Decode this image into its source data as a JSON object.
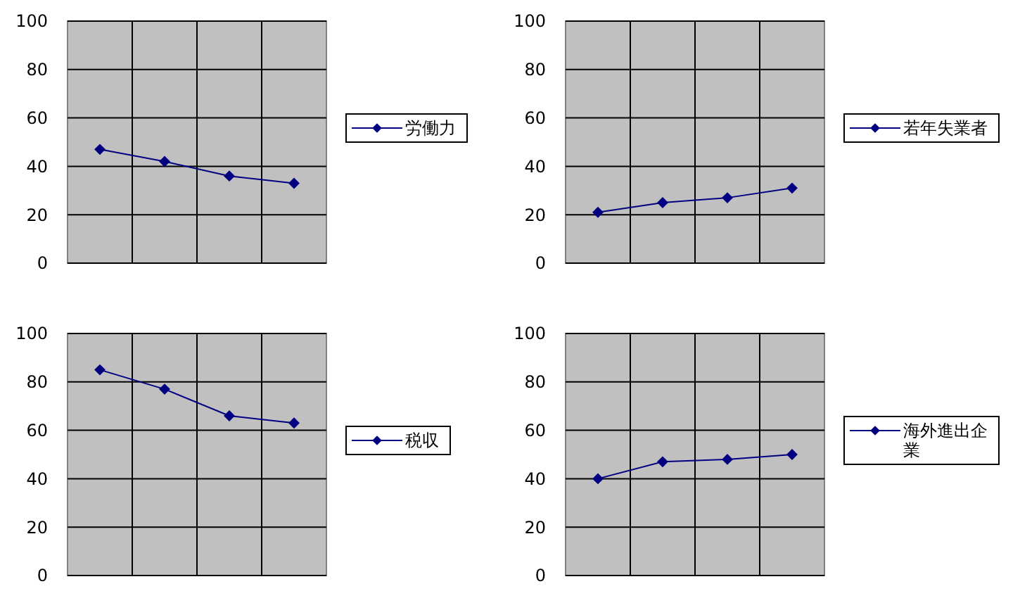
{
  "chart_data": [
    {
      "type": "line",
      "categories": [
        null,
        null,
        null,
        null
      ],
      "series": [
        {
          "name": "労働力",
          "color": "#000080",
          "values": [
            47,
            42,
            36,
            33
          ]
        }
      ],
      "ylim": [
        0,
        100
      ],
      "yticks": [
        0,
        20,
        40,
        60,
        80,
        100
      ],
      "grid": true,
      "legend": "right",
      "marker": "diamond"
    },
    {
      "type": "line",
      "categories": [
        null,
        null,
        null,
        null
      ],
      "series": [
        {
          "name": "若年失業者",
          "color": "#000080",
          "values": [
            21,
            25,
            27,
            31
          ]
        }
      ],
      "ylim": [
        0,
        100
      ],
      "yticks": [
        0,
        20,
        40,
        60,
        80,
        100
      ],
      "grid": true,
      "legend": "right",
      "marker": "diamond"
    },
    {
      "type": "line",
      "categories": [
        null,
        null,
        null,
        null
      ],
      "series": [
        {
          "name": "税収",
          "color": "#000080",
          "values": [
            85,
            77,
            66,
            63
          ]
        }
      ],
      "ylim": [
        0,
        100
      ],
      "yticks": [
        0,
        20,
        40,
        60,
        80,
        100
      ],
      "grid": true,
      "legend": "right",
      "marker": "diamond"
    },
    {
      "type": "line",
      "categories": [
        null,
        null,
        null,
        null
      ],
      "series": [
        {
          "name": "海外進出企業",
          "color": "#000080",
          "values": [
            40,
            47,
            48,
            50
          ]
        }
      ],
      "ylim": [
        0,
        100
      ],
      "yticks": [
        0,
        20,
        40,
        60,
        80,
        100
      ],
      "grid": true,
      "legend": "right",
      "marker": "diamond"
    }
  ]
}
